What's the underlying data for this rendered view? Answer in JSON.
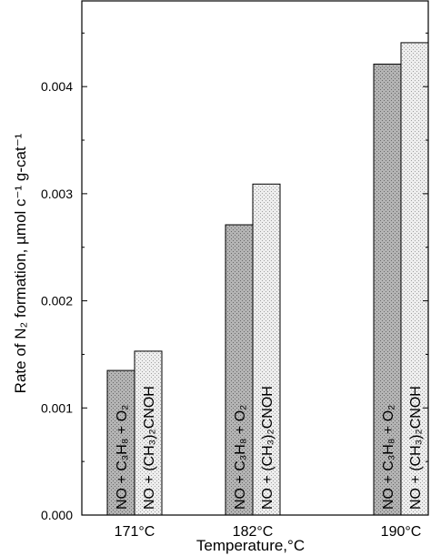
{
  "chart_data": {
    "type": "bar",
    "categories": [
      "171°C",
      "182°C",
      "190°C"
    ],
    "series": [
      {
        "name": "NO + C₃H₈ + O₂",
        "values": [
          0.00135,
          0.00271,
          0.00421
        ]
      },
      {
        "name": "NO + (CH₃)₂CNOH",
        "values": [
          0.00153,
          0.00309,
          0.00441
        ]
      }
    ],
    "bar_labels": [
      "NO + C₃H₈ + O₂",
      "NO + (CH₃)₂CNOH"
    ],
    "xlabel": "Temperature,°C",
    "ylabel": "Rate of N₂ formation, µmol c⁻¹ g-cat⁻¹",
    "ylim": [
      0,
      0.0048
    ],
    "yticks": [
      0,
      0.001,
      0.002,
      0.003,
      0.004
    ],
    "ytick_labels": [
      "0.000",
      "0.001",
      "0.002",
      "0.003",
      "0.004"
    ],
    "grid": false,
    "legend": "none",
    "colors": {
      "series1_fill": "#a8a8a8",
      "series2_fill": "#dcdcdc",
      "axis": "#000000"
    }
  }
}
